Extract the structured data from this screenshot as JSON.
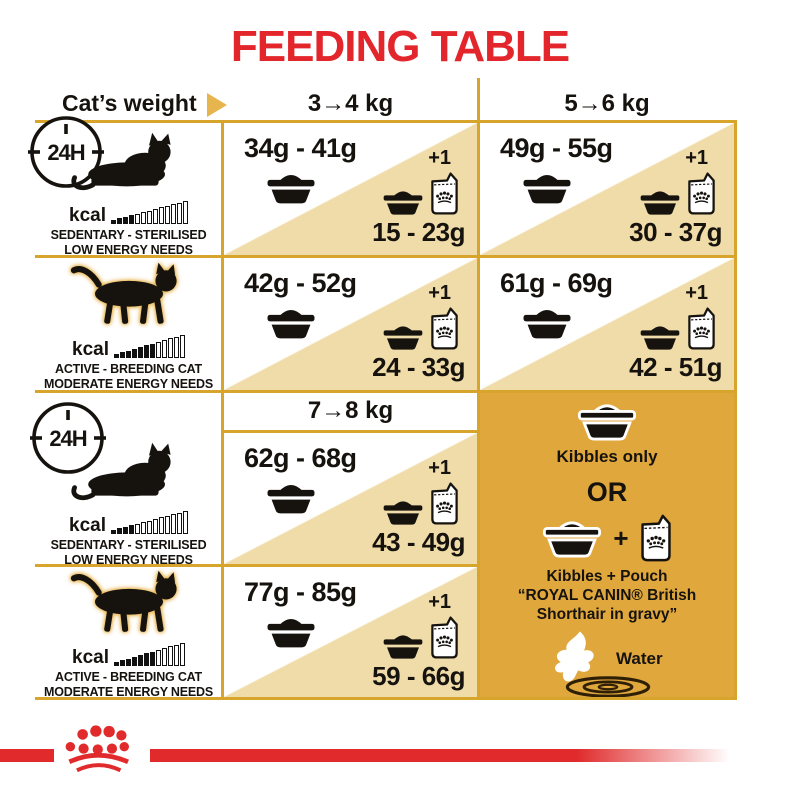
{
  "title": "FEEDING TABLE",
  "header": {
    "weight_label": "Cat’s weight",
    "col_3_4": "3→4 kg",
    "col_5_6": "5→6 kg",
    "col_7_8": "7→8 kg"
  },
  "clock_label": "24H",
  "kcal_label": "kcal",
  "profiles": {
    "sedentary": {
      "line1": "SEDENTARY - STERILISED",
      "line2": "LOW ENERGY NEEDS",
      "bars_filled": 4,
      "bars_total": 13
    },
    "active": {
      "line1": "ACTIVE - BREEDING CAT",
      "line2": "MODERATE ENERGY NEEDS",
      "bars_filled": 7,
      "bars_total": 12
    }
  },
  "cells": {
    "sed_3_4": {
      "kibbles": "34g - 41g",
      "plus": "+1",
      "mixed": "15 - 23g"
    },
    "sed_5_6": {
      "kibbles": "49g - 55g",
      "plus": "+1",
      "mixed": "30 - 37g"
    },
    "act_3_4": {
      "kibbles": "42g - 52g",
      "plus": "+1",
      "mixed": "24 - 33g"
    },
    "act_5_6": {
      "kibbles": "61g - 69g",
      "plus": "+1",
      "mixed": "42 - 51g"
    },
    "sed_7_8": {
      "kibbles": "62g - 68g",
      "plus": "+1",
      "mixed": "43 - 49g"
    },
    "act_7_8": {
      "kibbles": "77g - 85g",
      "plus": "+1",
      "mixed": "59 - 66g"
    }
  },
  "options_panel": {
    "kibbles_only": "Kibbles only",
    "or": "OR",
    "plus": "+",
    "mixed_line1": "Kibbles + Pouch",
    "mixed_line2": "“ROYAL CANIN® British",
    "mixed_line3": "Shorthair in gravy”",
    "water": "Water"
  },
  "colors": {
    "accent_red": "#e2262c",
    "grid_gold": "#d8a52c",
    "cell_tan": "#f0dca8",
    "panel_gold": "#e0a73c"
  }
}
